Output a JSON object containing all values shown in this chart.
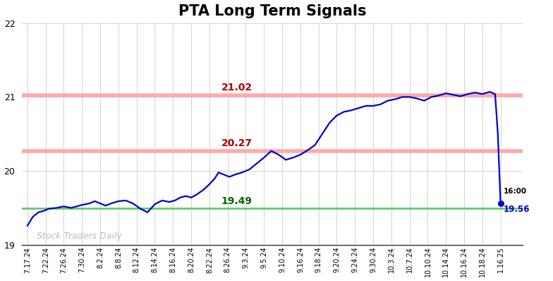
{
  "title": "PTA Long Term Signals",
  "title_fontsize": 15,
  "title_fontweight": "bold",
  "background_color": "#ffffff",
  "grid_color": "#cccccc",
  "ylim": [
    19.0,
    22.0
  ],
  "yticks": [
    19,
    20,
    21,
    22
  ],
  "line_color": "#0000cc",
  "line_width": 1.6,
  "red_lines": [
    21.02,
    20.27
  ],
  "green_line": 19.49,
  "red_line_color": "#ffaaaa",
  "green_line_color": "#66cc66",
  "red_line_lw": 4,
  "green_line_lw": 2,
  "red_label_color": "#aa0000",
  "green_label_color": "#006600",
  "label_fontsize": 10,
  "watermark": "Stock Traders Daily",
  "watermark_color": "#bbbbbb",
  "watermark_fontsize": 9,
  "last_price": 19.56,
  "last_time": "16:00",
  "last_label_color": "#0000cc",
  "last_dot_color": "#0000cc",
  "x_labels": [
    "7.17.24",
    "7.22.24",
    "7.26.24",
    "7.30.24",
    "8.2.24",
    "8.8.24",
    "8.12.24",
    "8.14.24",
    "8.16.24",
    "8.20.24",
    "8.22.24",
    "8.26.24",
    "9.3.24",
    "9.5.24",
    "9.10.24",
    "9.16.24",
    "9.18.24",
    "9.20.24",
    "9.24.24",
    "9.30.24",
    "10.3.24",
    "10.7.24",
    "10.10.24",
    "10.14.24",
    "10.16.24",
    "10.18.24",
    "1.16.25"
  ],
  "prices_x": [
    0,
    0.3,
    0.6,
    0.9,
    1.2,
    1.6,
    2.0,
    2.4,
    2.7,
    3.0,
    3.4,
    3.7,
    4.0,
    4.3,
    4.6,
    5.0,
    5.4,
    5.8,
    6.2,
    6.6,
    7.0,
    7.4,
    7.8,
    8.1,
    8.4,
    8.7,
    9.0,
    9.3,
    9.7,
    10.0,
    10.3,
    10.5,
    10.8,
    11.1,
    11.4,
    11.8,
    12.2,
    12.6,
    13.0,
    13.4,
    13.8,
    14.2,
    14.6,
    15.0,
    15.4,
    15.8,
    16.2,
    16.6,
    17.0,
    17.4,
    17.8,
    18.2,
    18.6,
    19.0,
    19.4,
    19.8,
    20.2,
    20.6,
    21.0,
    21.4,
    21.8,
    22.2,
    22.6,
    23.0,
    23.4,
    23.8,
    24.2,
    24.6,
    25.0,
    25.4,
    25.7,
    25.85,
    26.0
  ],
  "prices_y": [
    19.26,
    19.38,
    19.44,
    19.46,
    19.49,
    19.5,
    19.52,
    19.5,
    19.52,
    19.54,
    19.56,
    19.59,
    19.56,
    19.53,
    19.56,
    19.59,
    19.6,
    19.56,
    19.49,
    19.44,
    19.55,
    19.6,
    19.58,
    19.6,
    19.64,
    19.66,
    19.64,
    19.68,
    19.75,
    19.82,
    19.9,
    19.98,
    19.95,
    19.92,
    19.95,
    19.98,
    20.02,
    20.1,
    20.18,
    20.27,
    20.22,
    20.15,
    20.18,
    20.22,
    20.28,
    20.35,
    20.5,
    20.65,
    20.75,
    20.8,
    20.82,
    20.85,
    20.88,
    20.88,
    20.9,
    20.95,
    20.97,
    21.0,
    21.0,
    20.98,
    20.95,
    21.0,
    21.02,
    21.05,
    21.03,
    21.01,
    21.04,
    21.06,
    21.04,
    21.07,
    21.04,
    20.5,
    19.56
  ]
}
